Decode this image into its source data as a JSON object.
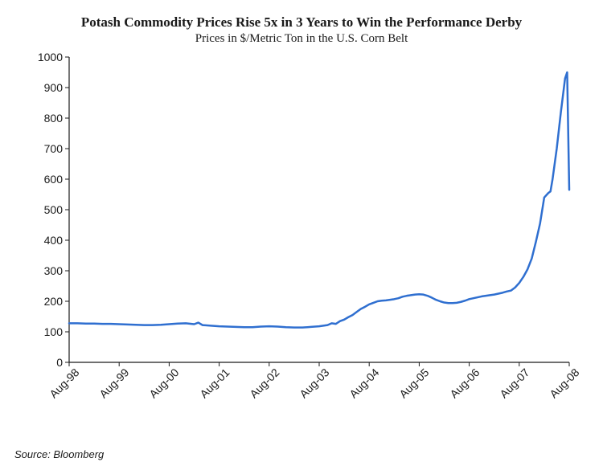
{
  "chart": {
    "type": "line",
    "title": "Potash Commodity Prices Rise 5x in 3 Years to Win the Performance Derby",
    "title_fontsize": 17,
    "title_weight": "bold",
    "subtitle": "Prices in $/Metric Ton in the U.S. Corn Belt",
    "subtitle_fontsize": 15,
    "background_color": "#ffffff",
    "axis_color": "#1a1a1a",
    "line_color": "#2f6fd0",
    "line_width": 2.5,
    "text_color": "#1a1a1a",
    "font_family_title": "Georgia, Times New Roman, serif",
    "font_family_axis": "Arial, sans-serif",
    "x_min": 0,
    "x_max": 120,
    "x_ticks": [
      {
        "pos": 0,
        "label": "Aug-98"
      },
      {
        "pos": 12,
        "label": "Aug-99"
      },
      {
        "pos": 24,
        "label": "Aug-00"
      },
      {
        "pos": 36,
        "label": "Aug-01"
      },
      {
        "pos": 48,
        "label": "Aug-02"
      },
      {
        "pos": 60,
        "label": "Aug-03"
      },
      {
        "pos": 72,
        "label": "Aug-04"
      },
      {
        "pos": 84,
        "label": "Aug-05"
      },
      {
        "pos": 96,
        "label": "Aug-06"
      },
      {
        "pos": 108,
        "label": "Aug-07"
      },
      {
        "pos": 120,
        "label": "Aug-08"
      }
    ],
    "x_tick_rotation": -45,
    "x_tick_fontsize": 14,
    "y_min": 0,
    "y_max": 1000,
    "y_ticks": [
      0,
      100,
      200,
      300,
      400,
      500,
      600,
      700,
      800,
      900,
      1000
    ],
    "y_tick_fontsize": 14,
    "tick_length": 5,
    "grid": false,
    "series": [
      {
        "name": "Potash price",
        "color": "#2f6fd0",
        "points": [
          [
            0,
            128
          ],
          [
            2,
            128
          ],
          [
            4,
            127
          ],
          [
            6,
            127
          ],
          [
            8,
            126
          ],
          [
            10,
            126
          ],
          [
            12,
            125
          ],
          [
            14,
            124
          ],
          [
            16,
            123
          ],
          [
            18,
            122
          ],
          [
            20,
            122
          ],
          [
            22,
            123
          ],
          [
            24,
            125
          ],
          [
            26,
            127
          ],
          [
            28,
            128
          ],
          [
            30,
            125
          ],
          [
            31,
            130
          ],
          [
            32,
            122
          ],
          [
            34,
            120
          ],
          [
            36,
            118
          ],
          [
            38,
            117
          ],
          [
            40,
            116
          ],
          [
            42,
            115
          ],
          [
            44,
            115
          ],
          [
            46,
            117
          ],
          [
            48,
            118
          ],
          [
            50,
            117
          ],
          [
            52,
            115
          ],
          [
            54,
            114
          ],
          [
            56,
            114
          ],
          [
            58,
            116
          ],
          [
            60,
            118
          ],
          [
            62,
            122
          ],
          [
            63,
            128
          ],
          [
            64,
            126
          ],
          [
            65,
            135
          ],
          [
            66,
            140
          ],
          [
            67,
            148
          ],
          [
            68,
            155
          ],
          [
            69,
            165
          ],
          [
            70,
            175
          ],
          [
            71,
            182
          ],
          [
            72,
            190
          ],
          [
            73,
            195
          ],
          [
            74,
            200
          ],
          [
            75,
            202
          ],
          [
            76,
            203
          ],
          [
            77,
            205
          ],
          [
            78,
            207
          ],
          [
            79,
            210
          ],
          [
            80,
            215
          ],
          [
            81,
            218
          ],
          [
            82,
            220
          ],
          [
            83,
            222
          ],
          [
            84,
            223
          ],
          [
            85,
            222
          ],
          [
            86,
            218
          ],
          [
            87,
            212
          ],
          [
            88,
            205
          ],
          [
            89,
            200
          ],
          [
            90,
            196
          ],
          [
            91,
            194
          ],
          [
            92,
            194
          ],
          [
            93,
            195
          ],
          [
            94,
            198
          ],
          [
            95,
            202
          ],
          [
            96,
            207
          ],
          [
            97,
            210
          ],
          [
            98,
            213
          ],
          [
            99,
            216
          ],
          [
            100,
            218
          ],
          [
            101,
            220
          ],
          [
            102,
            222
          ],
          [
            103,
            225
          ],
          [
            104,
            228
          ],
          [
            105,
            232
          ],
          [
            106,
            235
          ],
          [
            107,
            245
          ],
          [
            108,
            260
          ],
          [
            109,
            280
          ],
          [
            110,
            305
          ],
          [
            111,
            340
          ],
          [
            112,
            395
          ],
          [
            113,
            455
          ],
          [
            114,
            540
          ],
          [
            115,
            555
          ],
          [
            115.5,
            560
          ],
          [
            116,
            600
          ],
          [
            117,
            700
          ],
          [
            118,
            820
          ],
          [
            119,
            930
          ],
          [
            119.5,
            950
          ],
          [
            120,
            565
          ]
        ]
      }
    ],
    "source": "Source: Bloomberg",
    "source_fontsize": 13,
    "source_style": "italic"
  }
}
